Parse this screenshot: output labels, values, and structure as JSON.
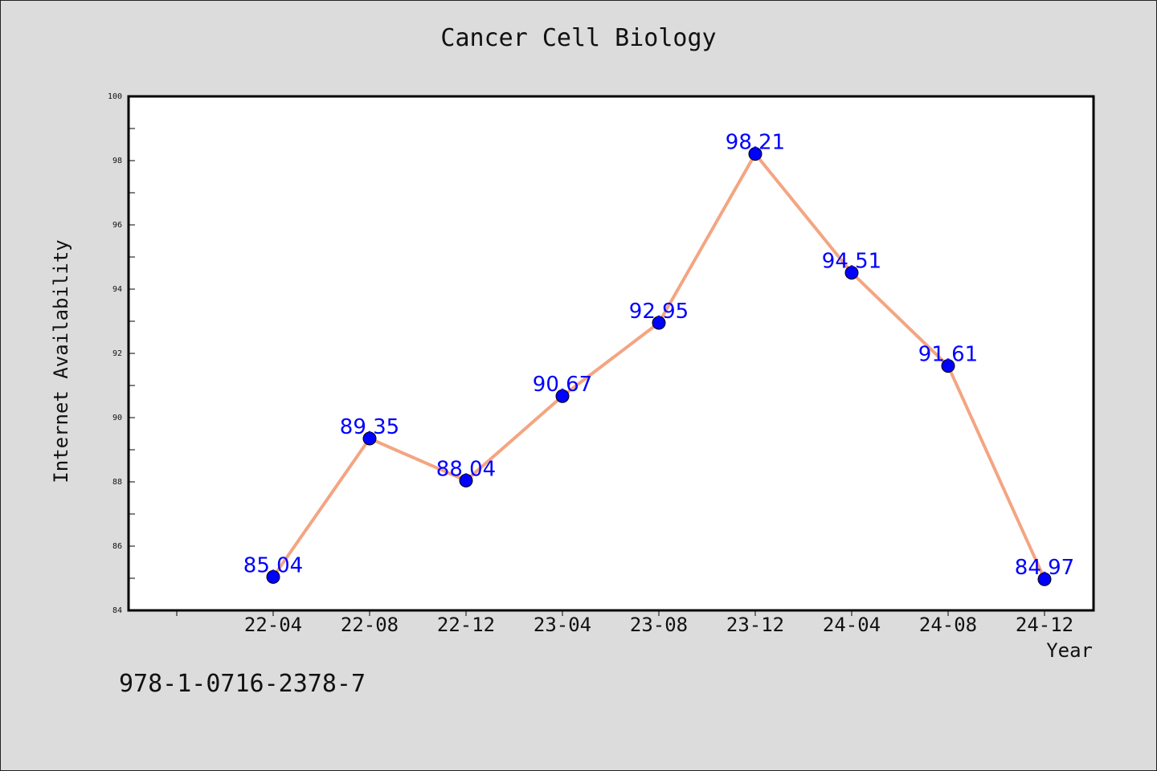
{
  "chart_data": {
    "type": "line",
    "title": "Cancer Cell Biology",
    "xlabel": "Year",
    "ylabel": "Internet Availability",
    "categories": [
      "22-04",
      "22-08",
      "22-12",
      "23-04",
      "23-08",
      "23-12",
      "24-04",
      "24-08",
      "24-12"
    ],
    "series": [
      {
        "values": [
          85.04,
          89.35,
          88.04,
          90.67,
          92.95,
          98.21,
          94.51,
          91.61,
          84.97
        ]
      }
    ],
    "data_labels": [
      "85.04",
      "89.35",
      "88.04",
      "90.67",
      "92.95",
      "98.21",
      "94.51",
      "91.61",
      "84.97"
    ],
    "ylim": [
      84,
      100
    ],
    "y_ticks": [
      "84",
      "86",
      "88",
      "90",
      "92",
      "94",
      "96",
      "98",
      "100"
    ],
    "grid": false,
    "line_color": "#f4a582",
    "marker_color": "#0000ff",
    "label_color": "#0000ff"
  },
  "footer": {
    "isbn": "978-1-0716-2378-7"
  }
}
